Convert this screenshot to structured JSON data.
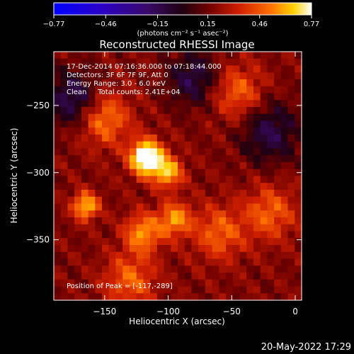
{
  "chart_data": {
    "type": "heatmap",
    "title": "Reconstructed RHESSI Image",
    "xlabel": "Heliocentric X (arcsec)",
    "ylabel": "Heliocentric Y (arcsec)",
    "xlim": [
      -190,
      5
    ],
    "ylim": [
      -395,
      -210
    ],
    "x_ticks": [
      -150,
      -100,
      -50,
      0
    ],
    "x_tick_labels": [
      "−150",
      "−100",
      "−50",
      "0"
    ],
    "y_ticks": [
      -250,
      -300,
      -350
    ],
    "y_tick_labels": [
      "−250",
      "−300",
      "−350"
    ],
    "colorbar": {
      "min": -0.77,
      "max": 0.77,
      "ticks": [
        -0.77,
        -0.46,
        -0.15,
        0.15,
        0.46,
        0.77
      ],
      "tick_labels": [
        "−0.77",
        "−0.46",
        "−0.15",
        "0.15",
        "0.46",
        "0.77"
      ],
      "label": "(photons cm⁻² s⁻¹ asec⁻²)"
    },
    "annotations": [
      "17-Dec-2014 07:16:36.000 to 07:18:44.000",
      "Detectors: 3F 6F 7F 9F, Att 0",
      "Energy Range: 3.0 - 6.0 keV",
      "Clean     Total counts: 2.41E+04"
    ],
    "peak_label": "Position of Peak = [-117,-289]",
    "sources": [
      {
        "x": -117,
        "y": -289,
        "amp": 0.77,
        "sigma": 9
      },
      {
        "x": -165,
        "y": -325,
        "amp": 0.5,
        "sigma": 7
      },
      {
        "x": -100,
        "y": -300,
        "amp": 0.45,
        "sigma": 8
      },
      {
        "x": -95,
        "y": -335,
        "amp": 0.4,
        "sigma": 9
      },
      {
        "x": -120,
        "y": -345,
        "amp": 0.4,
        "sigma": 10
      },
      {
        "x": -150,
        "y": -260,
        "amp": 0.35,
        "sigma": 14
      },
      {
        "x": -60,
        "y": -345,
        "amp": 0.3,
        "sigma": 14
      },
      {
        "x": -45,
        "y": -240,
        "amp": 0.3,
        "sigma": 14
      },
      {
        "x": -20,
        "y": -330,
        "amp": 0.3,
        "sigma": 14
      },
      {
        "x": -130,
        "y": -380,
        "amp": 0.3,
        "sigma": 14
      }
    ],
    "negative_regions": [
      {
        "x": -175,
        "y": -245,
        "amp": -0.35,
        "sigma": 14
      },
      {
        "x": -80,
        "y": -230,
        "amp": -0.3,
        "sigma": 14
      },
      {
        "x": -20,
        "y": -270,
        "amp": -0.3,
        "sigma": 16
      }
    ]
  },
  "footer": {
    "date": "20-May-2022 17:29"
  }
}
